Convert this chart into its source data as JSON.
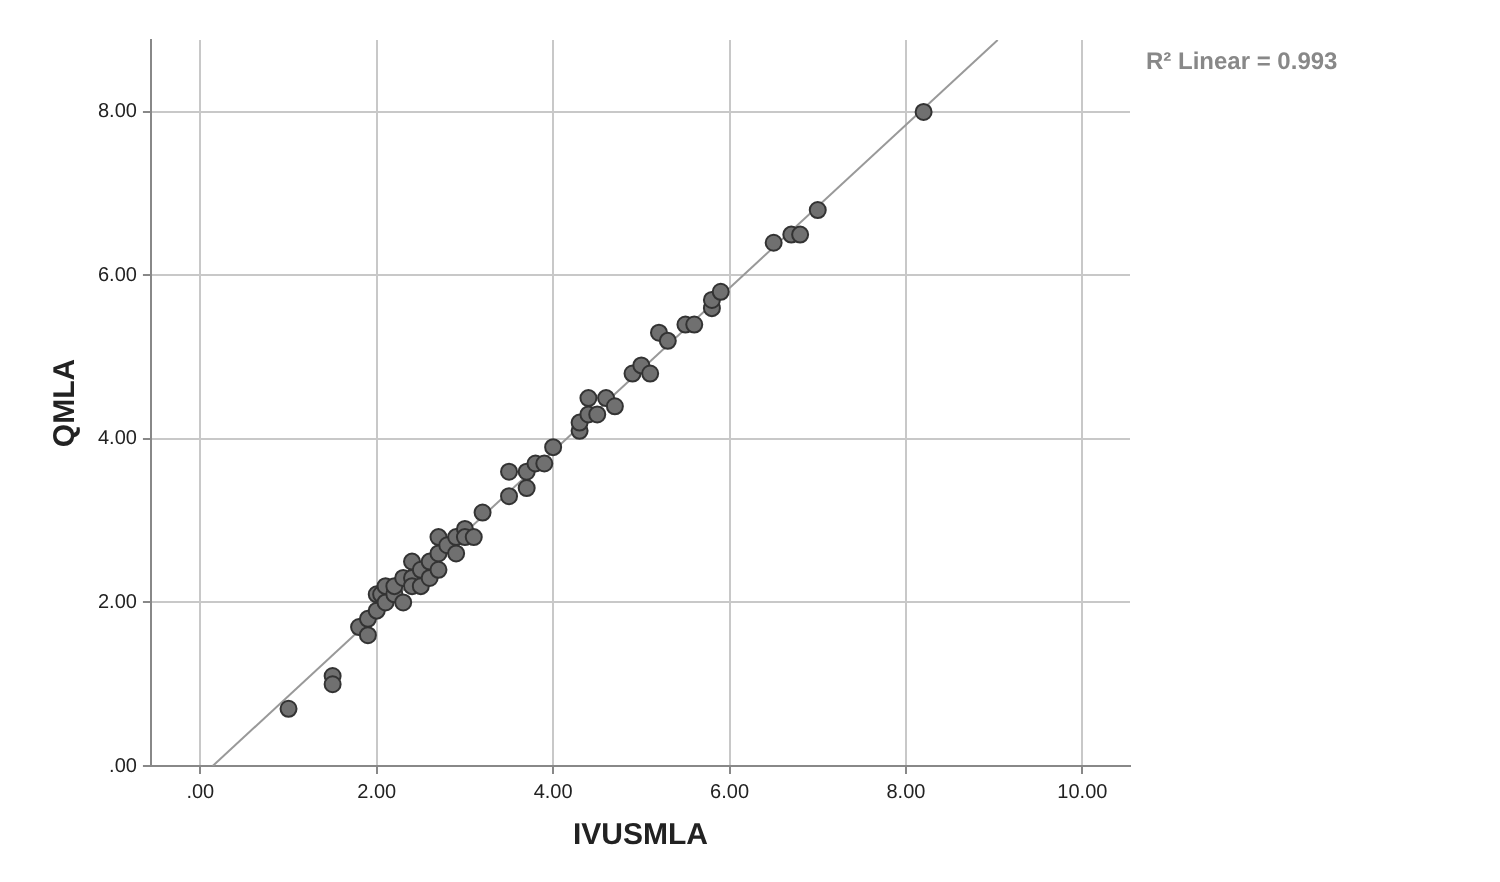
{
  "chart_data": {
    "type": "scatter",
    "xlabel": "IVUSMLA",
    "ylabel": "QMLA",
    "annotations": [
      "R² Linear = 0.993"
    ],
    "xlim": [
      -0.56,
      10.54
    ],
    "ylim": [
      0,
      8.88
    ],
    "xticks": [
      {
        "value": 0,
        "label": ".00"
      },
      {
        "value": 2,
        "label": "2.00"
      },
      {
        "value": 4,
        "label": "4.00"
      },
      {
        "value": 6,
        "label": "6.00"
      },
      {
        "value": 8,
        "label": "8.00"
      },
      {
        "value": 10,
        "label": "10.00"
      }
    ],
    "yticks": [
      {
        "value": 0,
        "label": ".00"
      },
      {
        "value": 2,
        "label": "2.00"
      },
      {
        "value": 4,
        "label": "4.00"
      },
      {
        "value": 6,
        "label": "6.00"
      },
      {
        "value": 8,
        "label": "8.00"
      }
    ],
    "grid": true,
    "series": [
      {
        "type": "scatter",
        "marker": "circle",
        "color": "#707070",
        "x": [
          1.0,
          1.5,
          1.5,
          1.8,
          1.9,
          1.9,
          2.0,
          2.0,
          2.05,
          2.1,
          2.1,
          2.2,
          2.2,
          2.3,
          2.3,
          2.4,
          2.4,
          2.4,
          2.5,
          2.5,
          2.6,
          2.6,
          2.7,
          2.7,
          2.7,
          2.8,
          2.9,
          2.9,
          3.0,
          3.0,
          3.1,
          3.2,
          3.5,
          3.5,
          3.7,
          3.7,
          3.8,
          3.9,
          4.0,
          4.3,
          4.3,
          4.4,
          4.4,
          4.5,
          4.6,
          4.7,
          4.9,
          5.0,
          5.1,
          5.2,
          5.3,
          5.5,
          5.6,
          5.8,
          5.8,
          5.9,
          6.5,
          6.7,
          6.8,
          7.0,
          8.2
        ],
        "values": [
          0.7,
          1.1,
          1.0,
          1.7,
          1.8,
          1.6,
          1.9,
          2.1,
          2.1,
          2.2,
          2.0,
          2.1,
          2.2,
          2.3,
          2.0,
          2.5,
          2.3,
          2.2,
          2.4,
          2.2,
          2.5,
          2.3,
          2.6,
          2.8,
          2.4,
          2.7,
          2.8,
          2.6,
          2.9,
          2.8,
          2.8,
          3.1,
          3.3,
          3.6,
          3.4,
          3.6,
          3.7,
          3.7,
          3.9,
          4.1,
          4.2,
          4.3,
          4.5,
          4.3,
          4.5,
          4.4,
          4.8,
          4.9,
          4.8,
          5.3,
          5.2,
          5.4,
          5.4,
          5.6,
          5.7,
          5.8,
          6.4,
          6.5,
          6.5,
          6.8,
          8.0
        ]
      },
      {
        "type": "line",
        "marker": "none",
        "color": "#999999",
        "x": [
          0.14,
          9.04
        ],
        "values": [
          0,
          8.88
        ]
      }
    ]
  }
}
